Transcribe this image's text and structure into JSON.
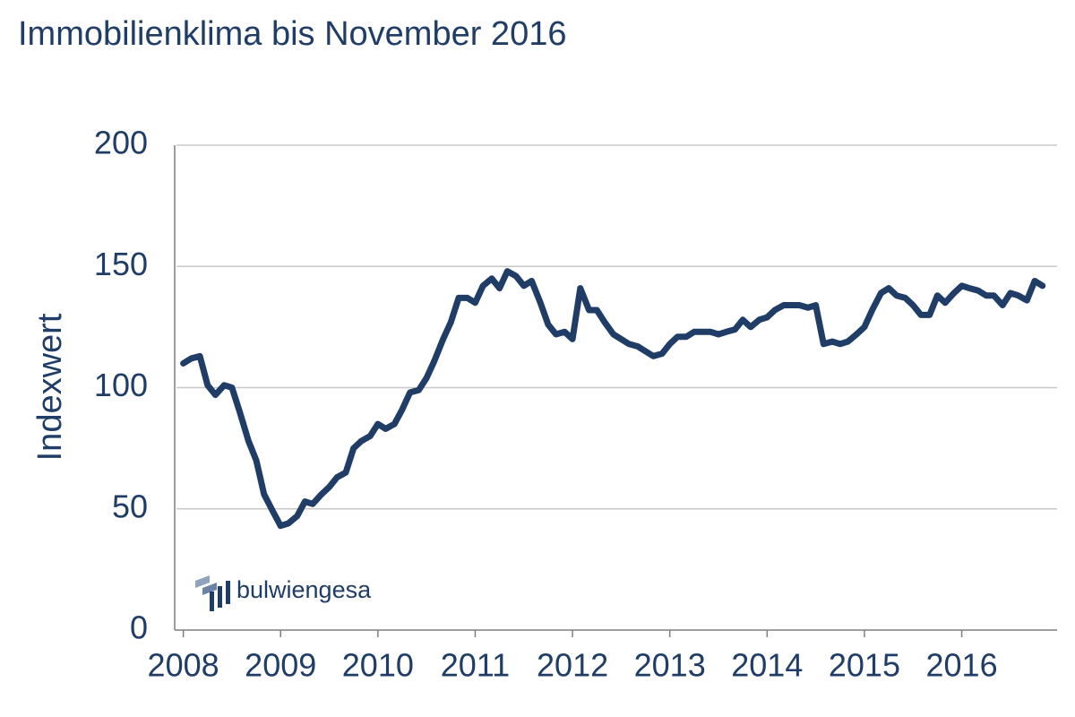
{
  "chart_data": {
    "type": "line",
    "title": "Immobilienklima bis November 2016",
    "y_label": "Indexwert",
    "logo": "bulwiengesa",
    "x": [
      2008.0,
      2008.08,
      2008.17,
      2008.25,
      2008.33,
      2008.42,
      2008.5,
      2008.58,
      2008.67,
      2008.75,
      2008.83,
      2008.92,
      2009.0,
      2009.08,
      2009.17,
      2009.25,
      2009.33,
      2009.42,
      2009.5,
      2009.58,
      2009.67,
      2009.75,
      2009.83,
      2009.92,
      2010.0,
      2010.08,
      2010.17,
      2010.25,
      2010.33,
      2010.42,
      2010.5,
      2010.58,
      2010.67,
      2010.75,
      2010.83,
      2010.92,
      2011.0,
      2011.08,
      2011.17,
      2011.25,
      2011.33,
      2011.42,
      2011.5,
      2011.58,
      2011.67,
      2011.75,
      2011.83,
      2011.92,
      2012.0,
      2012.08,
      2012.17,
      2012.25,
      2012.33,
      2012.42,
      2012.5,
      2012.58,
      2012.67,
      2012.75,
      2012.83,
      2012.92,
      2013.0,
      2013.08,
      2013.17,
      2013.25,
      2013.33,
      2013.42,
      2013.5,
      2013.58,
      2013.67,
      2013.75,
      2013.83,
      2013.92,
      2014.0,
      2014.08,
      2014.17,
      2014.25,
      2014.33,
      2014.42,
      2014.5,
      2014.58,
      2014.67,
      2014.75,
      2014.83,
      2014.92,
      2015.0,
      2015.08,
      2015.17,
      2015.25,
      2015.33,
      2015.42,
      2015.5,
      2015.58,
      2015.67,
      2015.75,
      2015.83,
      2015.92,
      2016.0,
      2016.08,
      2016.17,
      2016.25,
      2016.33,
      2016.42,
      2016.5,
      2016.58,
      2016.67,
      2016.75,
      2016.83
    ],
    "series": [
      {
        "color": "#1f3d66",
        "values": [
          110,
          112,
          113,
          101,
          97,
          101,
          100,
          90,
          78,
          70,
          56,
          49,
          43,
          44,
          47,
          53,
          52,
          56,
          59,
          63,
          65,
          75,
          78,
          80,
          85,
          83,
          85,
          91,
          98,
          99,
          104,
          111,
          120,
          127,
          137,
          137,
          135,
          142,
          145,
          141,
          148,
          146,
          142,
          144,
          135,
          126,
          122,
          123,
          120,
          141,
          132,
          132,
          127,
          122,
          120,
          118,
          117,
          115,
          113,
          114,
          118,
          121,
          121,
          123,
          123,
          123,
          122,
          123,
          124,
          128,
          125,
          128,
          129,
          132,
          134,
          134,
          134,
          133,
          134,
          118,
          119,
          118,
          119,
          122,
          125,
          132,
          139,
          141,
          138,
          137,
          134,
          130,
          130,
          138,
          135,
          139,
          142,
          141,
          140,
          138,
          138,
          134,
          139,
          138,
          136,
          144,
          142
        ]
      }
    ],
    "xlim": [
      2007.93,
      2016.98
    ],
    "xticks": [
      2008,
      2009,
      2010,
      2011,
      2012,
      2013,
      2014,
      2015,
      2016
    ],
    "ylim": [
      0,
      200
    ],
    "yticks": [
      0,
      50,
      100,
      150,
      200
    ],
    "grid": true
  }
}
